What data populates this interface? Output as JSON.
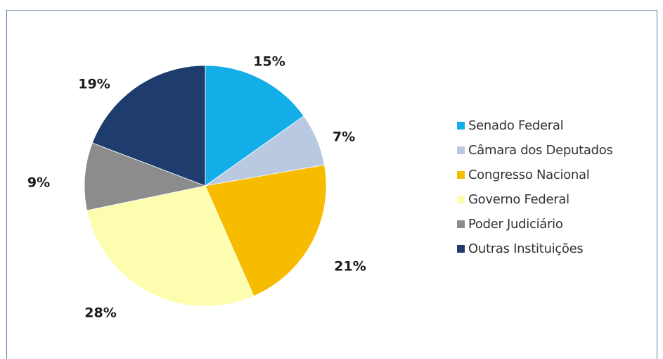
{
  "chart_data": {
    "type": "pie",
    "title": "",
    "categories": [
      "Senado Federal",
      "Câmara dos Deputados",
      "Congresso Nacional",
      "Governo Federal",
      "Poder Judiciário",
      "Outras Instituições"
    ],
    "values": [
      15,
      7,
      21,
      28,
      9,
      19
    ],
    "value_labels": [
      "15%",
      "7%",
      "21%",
      "28%",
      "9%",
      "19%"
    ],
    "colors": [
      "#13aee8",
      "#b8c9e0",
      "#f7bb00",
      "#fdfdb0",
      "#8c8c8c",
      "#1e3d6e"
    ],
    "legend_position": "right",
    "start_angle_deg": 0,
    "direction": "clockwise"
  }
}
